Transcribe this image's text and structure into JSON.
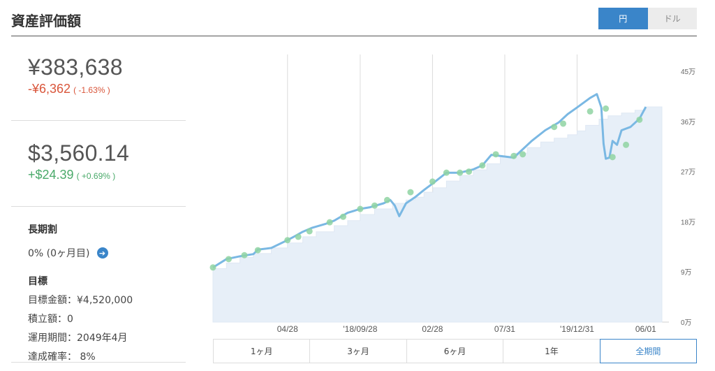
{
  "header": {
    "title": "資産評価額"
  },
  "currency_toggle": {
    "options": [
      "円",
      "ドル"
    ],
    "selected": "円"
  },
  "jpy": {
    "value": "¥383,638",
    "change": "-¥6,362",
    "pct": "( -1.63% )"
  },
  "usd": {
    "value": "$3,560.14",
    "change": "+$24.39",
    "pct": "( +0.69% )"
  },
  "long_term": {
    "title": "長期割",
    "value": "0% (0ヶ月目)"
  },
  "goal": {
    "title": "目標",
    "amount": "目標金額：¥4,520,000",
    "contribution": "積立額：0",
    "period": "運用期間：2049年4月",
    "probability": "達成確率：  8%"
  },
  "periods": {
    "items": [
      "1ヶ月",
      "3ヶ月",
      "6ヶ月",
      "1年",
      "全期間"
    ],
    "selected": "全期間"
  },
  "colors": {
    "accent": "#3a85c9",
    "line": "#7ab8e3",
    "area": "#e7eff8",
    "marker": "#8fd3a2",
    "negative": "#d9553a",
    "positive": "#4aaa6a"
  },
  "chart_data": {
    "type": "line",
    "title": "",
    "xlabel": "",
    "ylabel": "",
    "y_unit": "万",
    "ylim": [
      0,
      48
    ],
    "yticks": [
      0,
      9,
      18,
      27,
      36,
      45
    ],
    "ytick_labels": [
      "0万",
      "9万",
      "18万",
      "27万",
      "36万",
      "45万"
    ],
    "xlim": [
      0,
      100
    ],
    "xticks": [
      16.6,
      32.8,
      48.9,
      65.0,
      81.1,
      96.4
    ],
    "xtick_labels": [
      "04/28",
      "'18/09/28",
      "02/28",
      "07/31",
      "'19/12/31",
      "06/01"
    ],
    "gridlines_x": [
      16.6,
      32.8,
      48.9,
      65.0,
      81.1
    ],
    "series": [
      {
        "role": "valuation",
        "x": [
          0,
          3,
          6,
          9,
          10,
          13,
          16.6,
          18,
          20,
          22,
          25,
          27,
          30,
          32.8,
          35,
          38,
          39.5,
          40.5,
          41.5,
          43,
          45,
          47,
          49,
          52,
          55,
          58,
          60,
          62,
          64,
          67,
          69,
          71,
          74,
          77,
          79,
          81.1,
          84,
          85.5,
          86.5,
          87,
          87.5,
          88.3,
          89,
          90,
          91,
          93,
          95,
          96.4
        ],
        "y": [
          9.8,
          11.3,
          11.8,
          12.2,
          13.0,
          13.3,
          14.7,
          15.3,
          16.2,
          16.9,
          17.6,
          18.2,
          19.6,
          20.3,
          20.6,
          21.3,
          21.9,
          20.9,
          19.0,
          21.3,
          22.4,
          23.7,
          24.9,
          26.8,
          26.8,
          27.4,
          28.1,
          30.0,
          29.8,
          29.5,
          31.0,
          32.5,
          34.4,
          35.8,
          37.3,
          38.5,
          40.2,
          40.9,
          38.5,
          32.0,
          29.3,
          29.5,
          32.5,
          31.8,
          34.4,
          35.0,
          36.5,
          38.6
        ]
      },
      {
        "role": "principal",
        "x": [
          0,
          3,
          6,
          9,
          13,
          16.6,
          20,
          23,
          27,
          30,
          32.8,
          36,
          40,
          43,
          45,
          47,
          49,
          52,
          55,
          58,
          61,
          64,
          67,
          70,
          73,
          76,
          79,
          81.1,
          83,
          86,
          88,
          91,
          94,
          96.4
        ],
        "y": [
          9.6,
          10.6,
          11.6,
          12.3,
          13.3,
          14.2,
          15.3,
          16.2,
          17.3,
          18.2,
          19.3,
          20.3,
          21.3,
          21.9,
          22.4,
          23.3,
          24.1,
          25.3,
          26.3,
          27.3,
          28.4,
          29.6,
          30.3,
          31.3,
          32.3,
          33.0,
          33.6,
          34.3,
          35.3,
          36.4,
          37.0,
          37.5,
          38.0,
          38.6
        ]
      },
      {
        "role": "deposits",
        "x": [
          0,
          3.5,
          7,
          10,
          16.6,
          19,
          21.5,
          26,
          29,
          32.8,
          36,
          38.8,
          44,
          48.9,
          52,
          55,
          57,
          60,
          63,
          67,
          69,
          76,
          78,
          84,
          87.5,
          89,
          92,
          95
        ],
        "y": [
          9.8,
          11.3,
          12.0,
          12.9,
          14.7,
          15.3,
          16.3,
          17.9,
          18.9,
          20.3,
          20.9,
          21.9,
          23.3,
          25.2,
          26.8,
          26.8,
          27.0,
          28.1,
          30.1,
          29.8,
          30.1,
          35.0,
          35.6,
          37.8,
          38.3,
          29.6,
          31.8,
          36.3
        ]
      }
    ]
  }
}
